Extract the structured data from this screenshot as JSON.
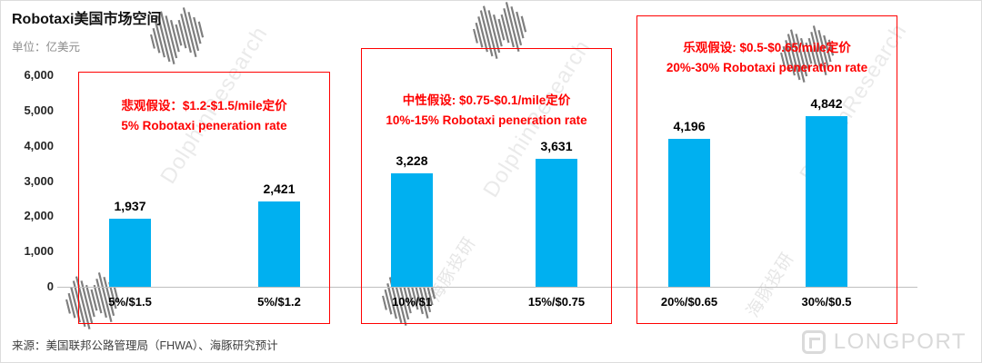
{
  "watermarks": {
    "brand": "DolphinResearch",
    "brand_cn": "海豚投研",
    "logo_text": "LONGPORT"
  },
  "chart_data": {
    "type": "bar",
    "title": "Robotaxi美国市场空间",
    "unit_label": "单位：亿美元",
    "ylim": [
      0,
      6000
    ],
    "y_ticks": [
      "6,000",
      "5,000",
      "4,000",
      "3,000",
      "2,000",
      "1,000",
      "0"
    ],
    "grid": "off",
    "bar_color": "#00B0F0",
    "accent_red": "#FF0000",
    "categories": [
      "5%/$1.5",
      "5%/$1.2",
      "10%/$1",
      "15%/$0.75",
      "20%/$0.65",
      "30%/$0.5"
    ],
    "values": [
      1937,
      2421,
      3228,
      3631,
      4196,
      4842
    ],
    "value_labels": [
      "1,937",
      "2,421",
      "3,228",
      "3,631",
      "4,196",
      "4,842"
    ],
    "annotations": [
      {
        "line1": "悲观假设：$1.2-$1.5/mile定价",
        "line2": "5% Robotaxi peneration rate"
      },
      {
        "line1": "中性假设: $0.75-$0.1/mile定价",
        "line2": "10%-15% Robotaxi peneration rate"
      },
      {
        "line1": "乐观假设: $0.5-$0.65/mile定价",
        "line2": "20%-30% Robotaxi peneration rate"
      }
    ],
    "source": "来源：美国联邦公路管理局（FHWA）、海豚研究预计"
  }
}
